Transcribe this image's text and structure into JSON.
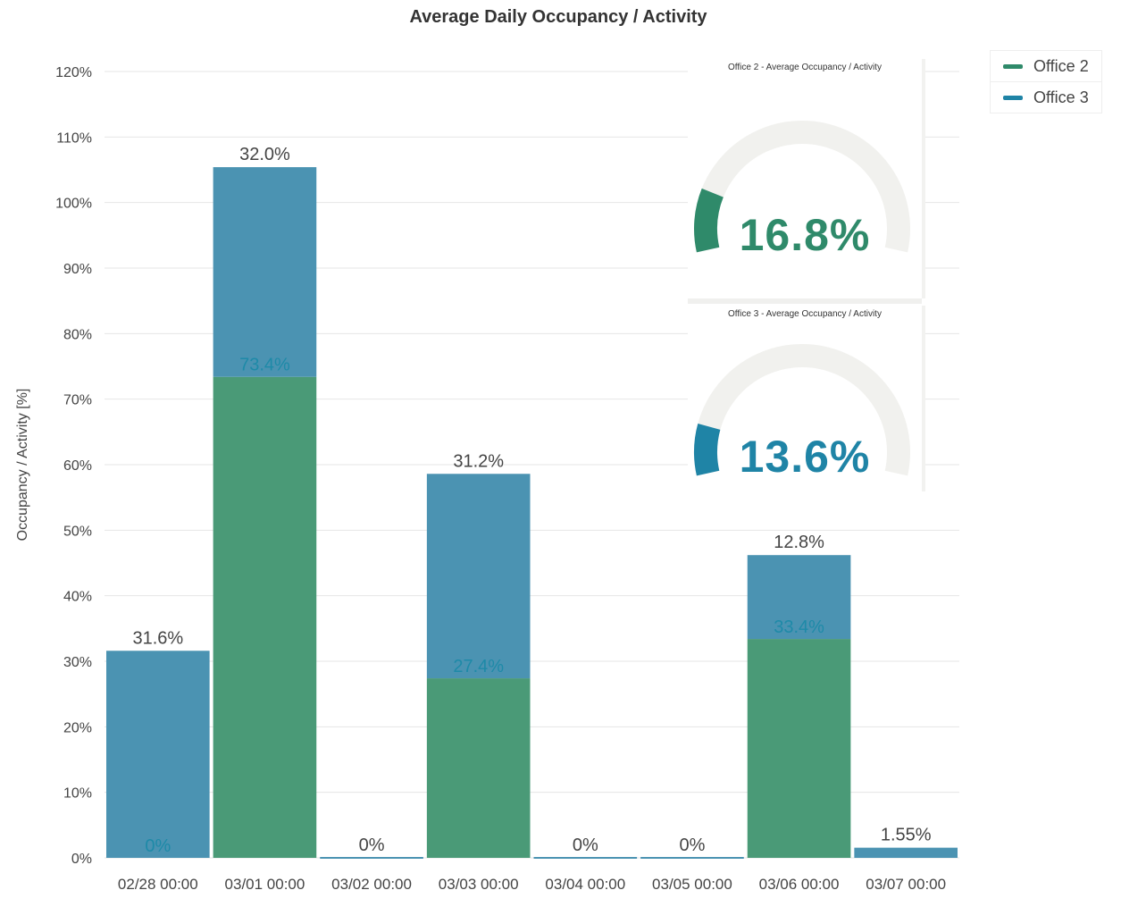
{
  "colors": {
    "office2": "#4a9a77",
    "office3": "#4b93b2",
    "gauge_office2": "#2f8a6a",
    "gauge_office3": "#1f84a6",
    "gauge_track": "#f1f1ee",
    "inner_label": "#1e8aa8",
    "grid": "#e6e6e6"
  },
  "chart_data": {
    "type": "bar",
    "stacked": true,
    "title": "Average Daily Occupancy / Activity",
    "xlabel": "",
    "ylabel": "Occupancy / Activity [%]",
    "ylim": [
      0,
      120
    ],
    "yticks": [
      0,
      10,
      20,
      30,
      40,
      50,
      60,
      70,
      80,
      90,
      100,
      110,
      120
    ],
    "ytick_labels": [
      "0%",
      "10%",
      "20%",
      "30%",
      "40%",
      "50%",
      "60%",
      "70%",
      "80%",
      "90%",
      "100%",
      "110%",
      "120%"
    ],
    "categories": [
      "02/28 00:00",
      "03/01 00:00",
      "03/02 00:00",
      "03/03 00:00",
      "03/04 00:00",
      "03/05 00:00",
      "03/06 00:00",
      "03/07 00:00"
    ],
    "series": [
      {
        "name": "Office 2",
        "values": [
          0,
          73.4,
          0,
          27.4,
          0,
          0,
          33.4,
          0
        ]
      },
      {
        "name": "Office 3",
        "values": [
          31.6,
          32.0,
          0,
          31.2,
          0,
          0,
          12.8,
          1.55
        ]
      }
    ],
    "inner_labels": [
      "0%",
      "73.4%",
      "",
      "27.4%",
      "",
      "",
      "33.4%",
      ""
    ],
    "top_labels": [
      "31.6%",
      "32.0%",
      "0%",
      "31.2%",
      "0%",
      "0%",
      "12.8%",
      "1.55%"
    ],
    "legend": [
      "Office 2",
      "Office 3"
    ],
    "legend_position": "top-right"
  },
  "gauges": [
    {
      "title": "Office 2 - Average Occupancy / Activity",
      "value": 16.8,
      "value_label": "16.8%"
    },
    {
      "title": "Office 3 - Average Occupancy / Activity",
      "value": 13.6,
      "value_label": "13.6%"
    }
  ]
}
